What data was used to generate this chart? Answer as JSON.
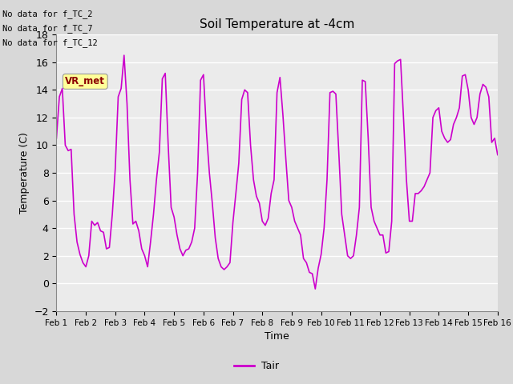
{
  "title": "Soil Temperature at -4cm",
  "xlabel": "Time",
  "ylabel": "Temperature (C)",
  "ylim": [
    -2,
    18
  ],
  "yticks": [
    -2,
    0,
    2,
    4,
    6,
    8,
    10,
    12,
    14,
    16,
    18
  ],
  "line_color": "#CC00CC",
  "line_width": 1.2,
  "fig_bg_color": "#D8D8D8",
  "plot_bg_color": "#EBEBEB",
  "annotations": [
    "No data for f_TC_2",
    "No data for f_TC_7",
    "No data for f_TC_12"
  ],
  "legend_label": "Tair",
  "vr_met_label": "VR_met",
  "xtick_labels": [
    "Feb 1",
    "Feb 2",
    "Feb 3",
    "Feb 4",
    "Feb 5",
    "Feb 6",
    "Feb 7",
    "Feb 8",
    "Feb 9",
    "Feb 10",
    "Feb 11",
    "Feb 12",
    "Feb 13",
    "Feb 14",
    "Feb 15",
    "Feb 16"
  ],
  "temperature_data": [
    10.5,
    13.5,
    14.1,
    10.0,
    9.6,
    9.7,
    5.0,
    3.0,
    2.1,
    1.5,
    1.2,
    2.0,
    4.5,
    4.2,
    4.4,
    3.8,
    3.7,
    2.5,
    2.6,
    5.0,
    8.3,
    13.5,
    14.1,
    16.5,
    13.0,
    7.5,
    4.3,
    4.5,
    3.8,
    2.5,
    2.0,
    1.2,
    3.0,
    5.0,
    7.5,
    9.5,
    14.8,
    15.2,
    10.0,
    5.5,
    4.8,
    3.5,
    2.5,
    2.0,
    2.4,
    2.5,
    3.0,
    4.0,
    8.0,
    14.7,
    15.1,
    11.0,
    8.0,
    5.8,
    3.3,
    1.8,
    1.2,
    1.0,
    1.2,
    1.5,
    4.4,
    6.5,
    8.7,
    13.3,
    14.0,
    13.8,
    10.0,
    7.5,
    6.3,
    5.8,
    4.5,
    4.2,
    4.7,
    6.5,
    7.5,
    13.8,
    14.9,
    12.2,
    9.0,
    6.0,
    5.5,
    4.5,
    4.0,
    3.5,
    1.8,
    1.5,
    0.8,
    0.7,
    -0.4,
    1.1,
    2.1,
    4.0,
    7.5,
    13.8,
    13.9,
    13.7,
    9.5,
    5.0,
    3.5,
    2.0,
    1.8,
    2.0,
    3.5,
    5.5,
    14.7,
    14.6,
    10.5,
    5.5,
    4.5,
    4.0,
    3.5,
    3.5,
    2.2,
    2.3,
    4.5,
    15.9,
    16.1,
    16.2,
    12.0,
    7.5,
    4.5,
    4.5,
    6.5,
    6.5,
    6.7,
    7.0,
    7.5,
    8.0,
    12.0,
    12.5,
    12.7,
    11.0,
    10.5,
    10.2,
    10.4,
    11.5,
    12.0,
    12.7,
    15.0,
    15.1,
    14.0,
    12.0,
    11.5,
    12.0,
    13.7,
    14.4,
    14.2,
    13.5,
    10.2,
    10.5,
    9.3
  ]
}
